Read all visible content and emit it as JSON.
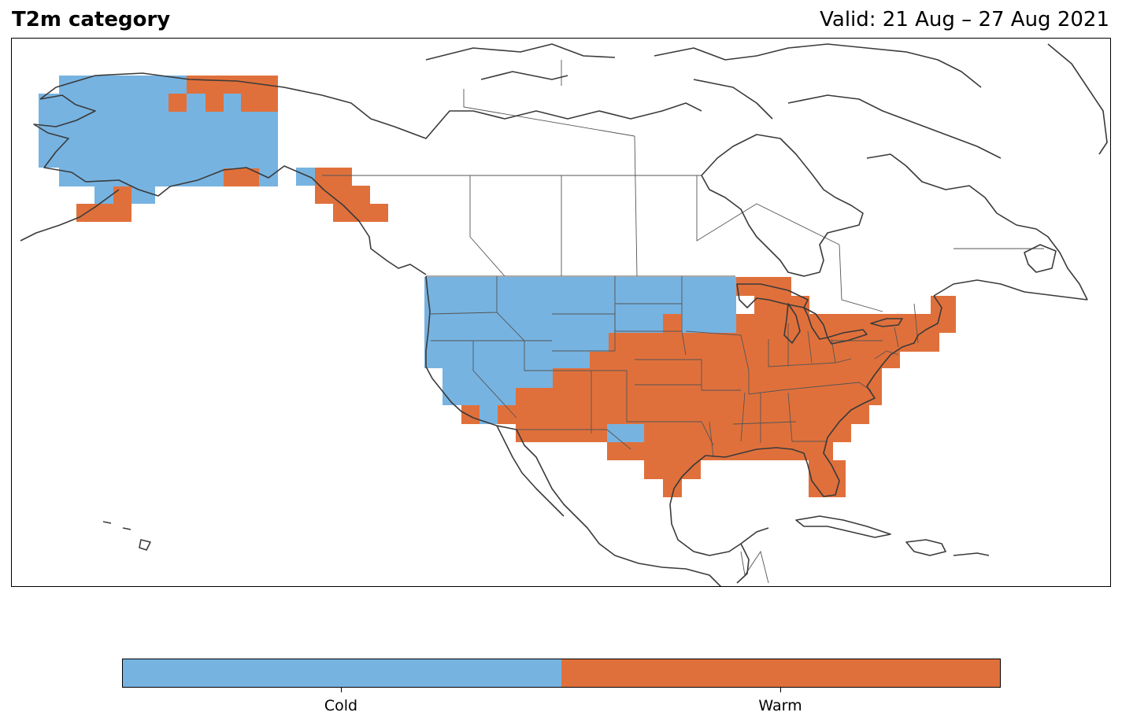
{
  "header": {
    "title": "T2m category",
    "valid": "Valid: 21 Aug – 27 Aug 2021"
  },
  "colors": {
    "cold": "#76b3e1",
    "warm": "#e0703b",
    "coast": "#3a3a3a",
    "border": "#555555"
  },
  "legend": {
    "categories": [
      {
        "label": "Cold",
        "color": "#76b3e1"
      },
      {
        "label": "Warm",
        "color": "#e0703b"
      }
    ]
  }
}
